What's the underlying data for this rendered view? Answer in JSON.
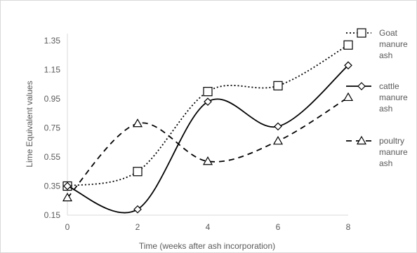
{
  "chart_data": {
    "type": "line",
    "title": "",
    "xlabel": "Time (weeks after ash incorporation)",
    "ylabel": "Lime Equivalent  values",
    "xlim": [
      0,
      8
    ],
    "ylim": [
      0.15,
      1.35
    ],
    "x_ticks": [
      "0",
      "2",
      "4",
      "6",
      "8"
    ],
    "y_ticks": [
      "0.15",
      "0.35",
      "0.55",
      "0.75",
      "0.95",
      "1.15",
      "1.35"
    ],
    "grid": false,
    "legend_position": "right",
    "x": [
      0,
      2,
      4,
      6,
      8
    ],
    "series": [
      {
        "name": "Goat manure ash",
        "legend_lines": [
          "Goat",
          "manure",
          "ash"
        ],
        "values": [
          0.35,
          0.45,
          1.0,
          1.04,
          1.32
        ],
        "marker": "square",
        "line_style": "dotted",
        "color": "#000000"
      },
      {
        "name": "cattle manure ash",
        "legend_lines": [
          "cattle",
          "manure",
          "ash"
        ],
        "values": [
          0.35,
          0.19,
          0.93,
          0.76,
          1.18
        ],
        "marker": "diamond",
        "line_style": "solid",
        "color": "#000000"
      },
      {
        "name": "poultry manure ash",
        "legend_lines": [
          "poultry",
          "manure",
          "ash"
        ],
        "values": [
          0.27,
          0.78,
          0.52,
          0.66,
          0.96
        ],
        "marker": "triangle",
        "line_style": "dashed",
        "color": "#000000"
      }
    ]
  }
}
